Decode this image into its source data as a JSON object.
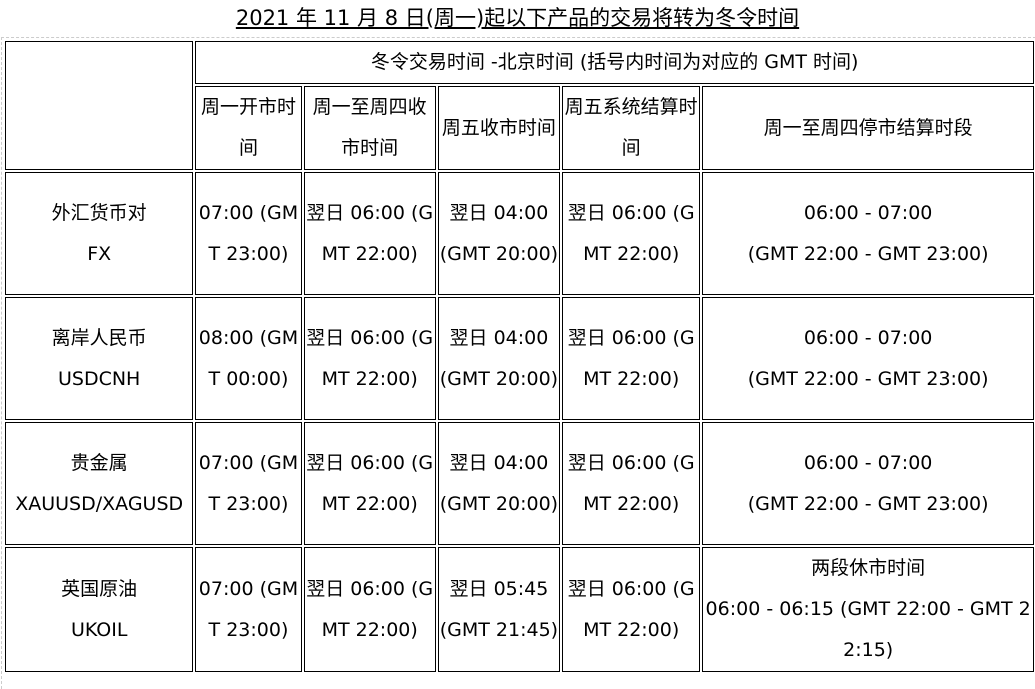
{
  "title": "2021 年 11 月 8 日(周一)起以下产品的交易将转为冬令时间",
  "header": {
    "group": "冬令交易时间  -北京时间 (括号内时间为对应的 GMT 时间)",
    "columns": [
      "周一开市时间",
      "周一至周四收市时间",
      "周五收市时间",
      "周五系统结算时间",
      "周一至周四停市结算时段"
    ]
  },
  "rows": [
    {
      "product": "外汇货币对",
      "code": "FX",
      "open": "07:00 (GMT 23:00)",
      "close": "翌日 06:00 (GMT 22:00)",
      "fri_close": "翌日 04:00 (GMT 20:00)",
      "settle": "翌日 06:00 (GMT 22:00)",
      "halt": "06:00 - 07:00",
      "halt_gmt": "(GMT 22:00 - GMT 23:00)"
    },
    {
      "product": "离岸人民币",
      "code": "USDCNH",
      "open": "08:00 (GMT 00:00)",
      "close": "翌日 06:00 (GMT 22:00)",
      "fri_close": "翌日 04:00 (GMT 20:00)",
      "settle": "翌日 06:00 (GMT 22:00)",
      "halt": "06:00 - 07:00",
      "halt_gmt": "(GMT 22:00 - GMT 23:00)"
    },
    {
      "product": "贵金属",
      "code": "XAUUSD/XAGUSD",
      "open": "07:00 (GMT 23:00)",
      "close": "翌日 06:00 (GMT 22:00)",
      "fri_close": "翌日 04:00 (GMT 20:00)",
      "settle": "翌日 06:00 (GMT 22:00)",
      "halt": "06:00 - 07:00",
      "halt_gmt": "(GMT 22:00 - GMT 23:00)"
    },
    {
      "product": "英国原油",
      "code": "UKOIL",
      "open": "07:00 (GMT 23:00)",
      "close": "翌日 06:00 (GMT 22:00)",
      "fri_close": "翌日 05:45 (GMT 21:45)",
      "settle": "翌日 06:00 (GMT 22:00)",
      "halt": "两段休市时间",
      "halt_gmt": "06:00 - 06:15 (GMT 22:00 - GMT 22:15)"
    }
  ]
}
